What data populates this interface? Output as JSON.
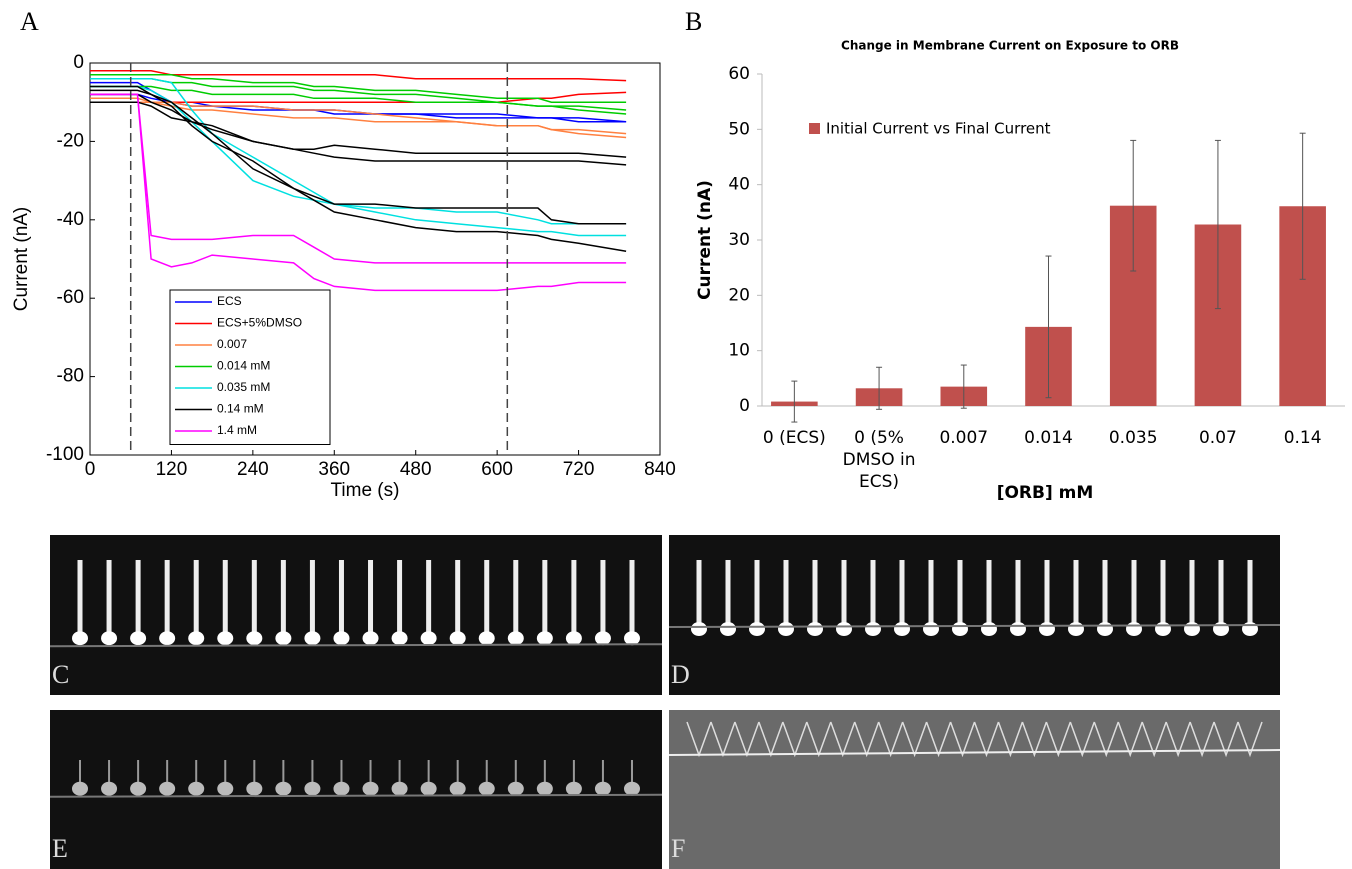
{
  "panel_labels": [
    "A",
    "B"
  ],
  "image_labels": [
    "C",
    "D",
    "E",
    "F"
  ],
  "chart_data": [
    {
      "type": "line",
      "xlabel": "Time (s)",
      "ylabel": "Current (nA)",
      "x": [
        0,
        60,
        70,
        90,
        120,
        150,
        180,
        240,
        300,
        330,
        360,
        420,
        480,
        540,
        600,
        660,
        680,
        720,
        790
      ],
      "xlim": [
        0,
        840
      ],
      "xticks": [
        0,
        120,
        240,
        360,
        480,
        600,
        720,
        840
      ],
      "ylim": [
        -100,
        0
      ],
      "yticks": [
        -100,
        -80,
        -60,
        -40,
        -20,
        0
      ],
      "vlines": [
        60,
        615
      ],
      "series": [
        {
          "name": "ECS",
          "color": "#0000ff",
          "traces": [
            [
              -8,
              -8,
              -8,
              -9,
              -10,
              -10,
              -11,
              -11,
              -12,
              -12,
              -12,
              -13,
              -13,
              -14,
              -14,
              -14,
              -14,
              -15,
              -15
            ],
            [
              -5,
              -5,
              -5,
              -7,
              -10,
              -11,
              -11,
              -12,
              -12,
              -12,
              -13,
              -13,
              -13,
              -13,
              -13,
              -14,
              -14,
              -14,
              -15
            ]
          ]
        },
        {
          "name": "ECS+5%DMSO",
          "color": "#ff0000",
          "traces": [
            [
              -2,
              -2,
              -2,
              -2,
              -3,
              -3,
              -3,
              -3,
              -3,
              -3,
              -3,
              -3,
              -4,
              -4,
              -4,
              -4,
              -4,
              -4,
              -4.5
            ],
            [
              -10,
              -10,
              -10,
              -10,
              -10,
              -10,
              -10,
              -10,
              -10,
              -10,
              -10,
              -10,
              -10,
              -10,
              -10,
              -9,
              -9,
              -8,
              -7.5
            ]
          ]
        },
        {
          "name": "0.007",
          "color": "#ff8040",
          "traces": [
            [
              -9,
              -9,
              -9,
              -10,
              -11,
              -12,
              -12,
              -13,
              -14,
              -14,
              -14,
              -15,
              -15,
              -15,
              -16,
              -16,
              -17,
              -17,
              -18
            ],
            [
              -10,
              -10,
              -10,
              -10,
              -10,
              -11,
              -11,
              -11,
              -12,
              -12,
              -12,
              -13,
              -14,
              -15,
              -16,
              -16,
              -17,
              -18,
              -19
            ]
          ]
        },
        {
          "name": "0.014 mM",
          "color": "#00cc00",
          "traces": [
            [
              -4,
              -4,
              -4,
              -4,
              -5,
              -5,
              -6,
              -6,
              -6,
              -7,
              -7,
              -8,
              -8,
              -9,
              -10,
              -11,
              -11,
              -12,
              -13
            ],
            [
              -6,
              -6,
              -6,
              -6,
              -7,
              -7,
              -8,
              -8,
              -8,
              -9,
              -9,
              -9,
              -10,
              -10,
              -10,
              -11,
              -11,
              -11,
              -12
            ],
            [
              -3,
              -3,
              -3,
              -3,
              -3,
              -4,
              -4,
              -5,
              -5,
              -6,
              -6,
              -7,
              -7,
              -8,
              -9,
              -9,
              -10,
              -10,
              -10
            ]
          ]
        },
        {
          "name": "0.035 mM",
          "color": "#00e0e0",
          "traces": [
            [
              -4,
              -4,
              -4,
              -4,
              -5,
              -12,
              -18,
              -24,
              -30,
              -33,
              -36,
              -38,
              -40,
              -41,
              -42,
              -43,
              -43,
              -44,
              -44
            ],
            [
              -6,
              -6,
              -6,
              -7,
              -10,
              -15,
              -20,
              -30,
              -34,
              -35,
              -36,
              -37,
              -37,
              -38,
              -38,
              -40,
              -41,
              -41,
              -41
            ]
          ]
        },
        {
          "name": "0.14 mM",
          "color": "#000000",
          "traces": [
            [
              -8,
              -8,
              -8,
              -10,
              -12,
              -15,
              -17,
              -20,
              -22,
              -22,
              -21,
              -22,
              -23,
              -23,
              -23,
              -23,
              -23,
              -23,
              -24
            ],
            [
              -10,
              -10,
              -10,
              -11,
              -14,
              -15,
              -16,
              -20,
              -22,
              -23,
              -24,
              -25,
              -25,
              -25,
              -25,
              -25,
              -25,
              -25,
              -26
            ],
            [
              -6,
              -6,
              -6,
              -8,
              -10,
              -14,
              -18,
              -27,
              -32,
              -34,
              -36,
              -36,
              -37,
              -37,
              -37,
              -37,
              -40,
              -41,
              -41
            ],
            [
              -7,
              -7,
              -7,
              -8,
              -11,
              -16,
              -20,
              -25,
              -32,
              -35,
              -38,
              -40,
              -42,
              -43,
              -43,
              -44,
              -45,
              -46,
              -48
            ]
          ]
        },
        {
          "name": "1.4 mM",
          "color": "#ff00ff",
          "traces": [
            [
              -8,
              -8,
              -8,
              -44,
              -45,
              -45,
              -45,
              -44,
              -44,
              -47,
              -50,
              -51,
              -51,
              -51,
              -51,
              -51,
              -51,
              -51,
              -51
            ],
            [
              -8,
              -8,
              -8,
              -50,
              -52,
              -51,
              -49,
              -50,
              -51,
              -55,
              -57,
              -58,
              -58,
              -58,
              -58,
              -57,
              -57,
              -56,
              -56
            ]
          ]
        }
      ]
    },
    {
      "type": "bar",
      "title": "Change in Membrane Current on Exposure to ORB",
      "xlabel": "[ORB] mM",
      "ylabel": "Current (nA)",
      "categories": [
        "0 (ECS)",
        "0 (5% DMSO in ECS)",
        "0.007",
        "0.014",
        "0.035",
        "0.07",
        "0.14"
      ],
      "ylim": [
        0,
        60
      ],
      "yticks": [
        0,
        10,
        20,
        30,
        40,
        50,
        60
      ],
      "series": [
        {
          "name": "Initial Current vs Final Current",
          "color": "#c0504d",
          "values": [
            0.8,
            3.2,
            3.5,
            14.3,
            36.2,
            32.8,
            36.1
          ],
          "errors": [
            3.7,
            3.8,
            3.9,
            12.8,
            11.8,
            15.2,
            13.2
          ]
        }
      ]
    }
  ]
}
